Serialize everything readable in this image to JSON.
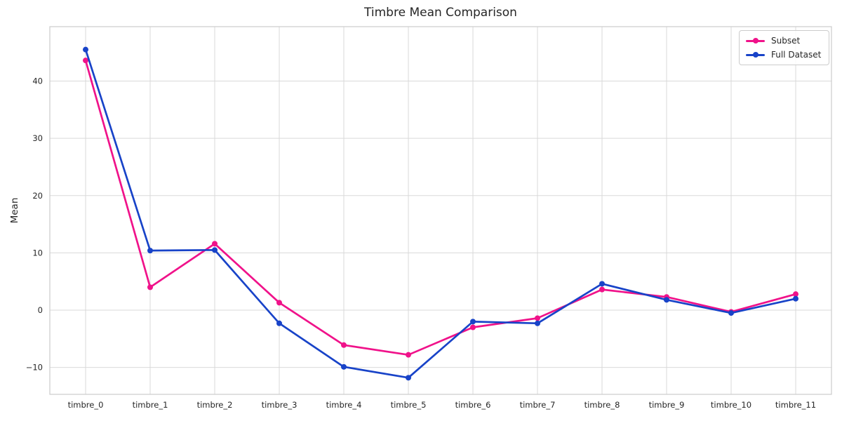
{
  "chart_data": {
    "type": "line",
    "title": "Timbre Mean Comparison",
    "xlabel": "",
    "ylabel": "Mean",
    "categories": [
      "timbre_0",
      "timbre_1",
      "timbre_2",
      "timbre_3",
      "timbre_4",
      "timbre_5",
      "timbre_6",
      "timbre_7",
      "timbre_8",
      "timbre_9",
      "timbre_10",
      "timbre_11"
    ],
    "series": [
      {
        "name": "Subset",
        "color": "#F0128A",
        "values": [
          43.6,
          4.0,
          11.6,
          1.3,
          -6.1,
          -7.8,
          -3.0,
          -1.4,
          3.6,
          2.3,
          -0.3,
          2.8
        ]
      },
      {
        "name": "Full Dataset",
        "color": "#1843C8",
        "values": [
          45.5,
          10.4,
          10.5,
          -2.3,
          -9.9,
          -11.8,
          -2.0,
          -2.3,
          4.6,
          1.8,
          -0.5,
          2.0
        ]
      }
    ],
    "ylim": [
      -14.7,
      49.5
    ],
    "yticks": [
      -10,
      0,
      10,
      20,
      30,
      40
    ],
    "grid": "on",
    "legend_position": "upper right"
  },
  "style_colors": {
    "grid": "#d9d9d9",
    "axis_border": "#cccccc",
    "text": "#262626",
    "background": "#ffffff"
  }
}
